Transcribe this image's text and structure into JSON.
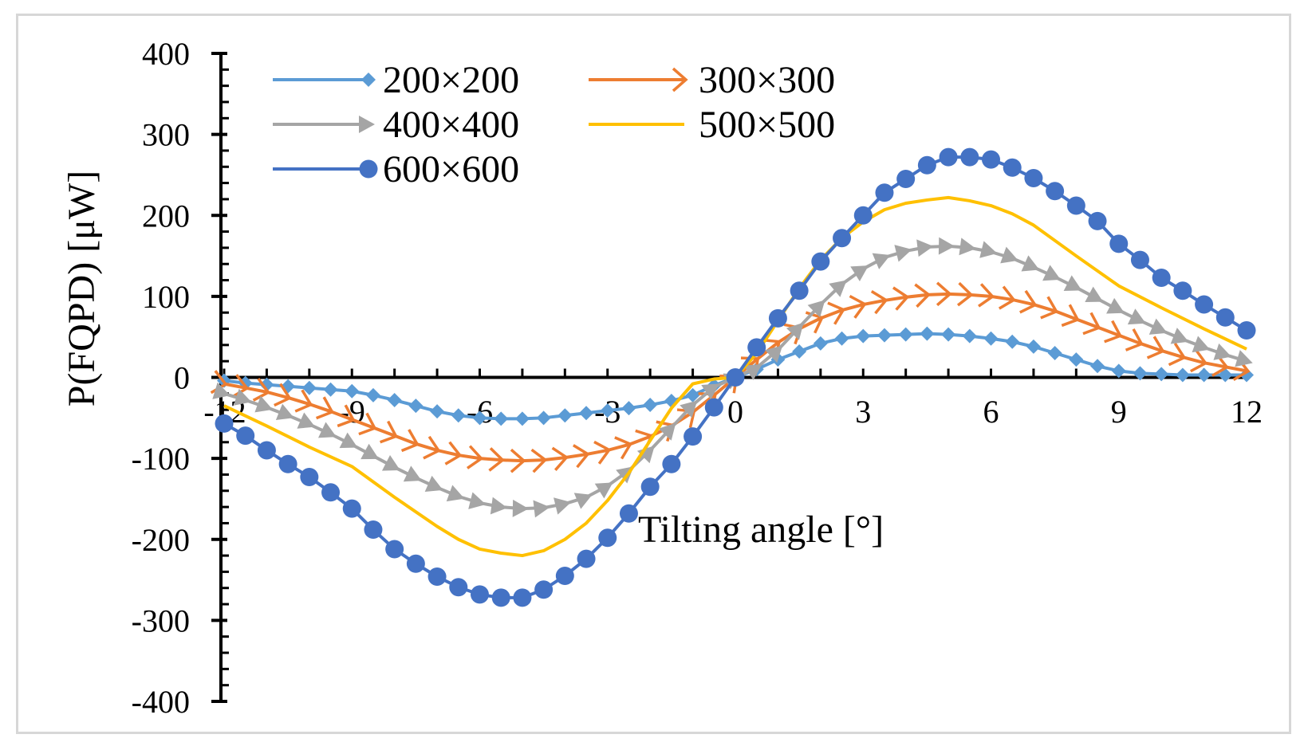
{
  "chart_data": {
    "type": "line",
    "title": "",
    "xlabel": "Tilting angle [°]",
    "ylabel": "P(FQPD) [μW]",
    "xlim": [
      -12,
      12
    ],
    "ylim": [
      -400,
      400
    ],
    "xticks": [
      -12,
      -9,
      -6,
      -3,
      0,
      3,
      6,
      9,
      12
    ],
    "xtick_labels": [
      "-12",
      "-9",
      "-6",
      "-3",
      "0",
      "3",
      "6",
      "9",
      "12"
    ],
    "yticks": [
      400,
      300,
      200,
      100,
      0,
      -100,
      -200,
      -300,
      -400
    ],
    "ytick_labels": [
      "400",
      "300",
      "200",
      "100",
      "0",
      "-100",
      "-200",
      "-300",
      "-400"
    ],
    "legend_position": "top-left",
    "series": [
      {
        "name": "200×200",
        "color": "#5b9bd5",
        "marker": "diamond",
        "x": [
          -12,
          -11.5,
          -11,
          -10.5,
          -10,
          -9.5,
          -9,
          -8.5,
          -8,
          -7.5,
          -7,
          -6.5,
          -6,
          -5.5,
          -5,
          -4.5,
          -4,
          -3.5,
          -3,
          -2.5,
          -2,
          -1.5,
          -1,
          -0.5,
          0,
          0.5,
          1,
          1.5,
          2,
          2.5,
          3,
          3.5,
          4,
          4.5,
          5,
          5.5,
          6,
          6.5,
          7,
          7.5,
          8,
          8.5,
          9,
          9.5,
          10,
          10.5,
          11,
          11.5,
          12
        ],
        "y": [
          -4,
          -7,
          -9,
          -11,
          -13,
          -15,
          -17,
          -22,
          -28,
          -35,
          -42,
          -47,
          -50,
          -51,
          -51,
          -50,
          -47,
          -44,
          -41,
          -38,
          -34,
          -29,
          -22,
          -10,
          0,
          10,
          22,
          32,
          42,
          48,
          51,
          52,
          53,
          54,
          53,
          51,
          48,
          44,
          38,
          30,
          22,
          14,
          8,
          5,
          4,
          3,
          3,
          3,
          3
        ]
      },
      {
        "name": "300×300",
        "color": "#ed7d31",
        "marker": "arrow",
        "x": [
          -12,
          -11.5,
          -11,
          -10.5,
          -10,
          -9.5,
          -9,
          -8.5,
          -8,
          -7.5,
          -7,
          -6.5,
          -6,
          -5.5,
          -5,
          -4.5,
          -4,
          -3.5,
          -3,
          -2.5,
          -2,
          -1.5,
          -1,
          -0.5,
          0,
          0.5,
          1,
          1.5,
          2,
          2.5,
          3,
          3.5,
          4,
          4.5,
          5,
          5.5,
          6,
          6.5,
          7,
          7.5,
          8,
          8.5,
          9,
          9.5,
          10,
          10.5,
          11,
          11.5,
          12
        ],
        "y": [
          -8,
          -13,
          -18,
          -25,
          -33,
          -42,
          -52,
          -62,
          -72,
          -82,
          -90,
          -96,
          -100,
          -102,
          -103,
          -102,
          -99,
          -95,
          -90,
          -83,
          -73,
          -60,
          -43,
          -22,
          0,
          22,
          43,
          60,
          73,
          83,
          90,
          95,
          99,
          102,
          103,
          102,
          100,
          96,
          90,
          82,
          72,
          62,
          52,
          42,
          33,
          25,
          18,
          13,
          8
        ]
      },
      {
        "name": "400×400",
        "color": "#a5a5a5",
        "marker": "arrow",
        "x": [
          -12,
          -11.5,
          -11,
          -10.5,
          -10,
          -9.5,
          -9,
          -8.5,
          -8,
          -7.5,
          -7,
          -6.5,
          -6,
          -5.5,
          -5,
          -4.5,
          -4,
          -3.5,
          -3,
          -2.5,
          -2,
          -1.5,
          -1,
          -0.5,
          0,
          0.5,
          1,
          1.5,
          2,
          2.5,
          3,
          3.5,
          4,
          4.5,
          5,
          5.5,
          6,
          6.5,
          7,
          7.5,
          8,
          8.5,
          9,
          9.5,
          10,
          10.5,
          11,
          11.5,
          12
        ],
        "y": [
          -20,
          -28,
          -37,
          -47,
          -58,
          -70,
          -83,
          -97,
          -111,
          -124,
          -136,
          -147,
          -155,
          -160,
          -162,
          -161,
          -156,
          -148,
          -134,
          -115,
          -90,
          -62,
          -34,
          -12,
          0,
          12,
          34,
          62,
          90,
          115,
          134,
          148,
          156,
          161,
          162,
          160,
          155,
          147,
          136,
          124,
          111,
          97,
          83,
          70,
          58,
          47,
          37,
          28,
          20
        ]
      },
      {
        "name": "500×500",
        "color": "#ffc000",
        "marker": "none",
        "x": [
          -12,
          -11,
          -10,
          -9,
          -8,
          -7,
          -6.5,
          -6,
          -5.5,
          -5,
          -4.5,
          -4,
          -3.5,
          -3,
          -2.5,
          -2,
          -1.5,
          -1,
          -0.5,
          0,
          0.5,
          1,
          1.5,
          2,
          2.5,
          3,
          3.5,
          4,
          4.5,
          5,
          5.5,
          6,
          6.5,
          7,
          8,
          9,
          10,
          11,
          12
        ],
        "y": [
          -35,
          -60,
          -86,
          -110,
          -148,
          -184,
          -200,
          -212,
          -217,
          -220,
          -214,
          -200,
          -180,
          -152,
          -118,
          -78,
          -38,
          -8,
          -2,
          0,
          30,
          70,
          110,
          145,
          172,
          192,
          207,
          215,
          219,
          222,
          218,
          212,
          202,
          188,
          150,
          113,
          86,
          60,
          35
        ]
      },
      {
        "name": "600×600",
        "color": "#4472c4",
        "marker": "circle",
        "x": [
          -12,
          -11.5,
          -11,
          -10.5,
          -10,
          -9.5,
          -9,
          -8.5,
          -8,
          -7.5,
          -7,
          -6.5,
          -6,
          -5.5,
          -5,
          -4.5,
          -4,
          -3.5,
          -3,
          -2.5,
          -2,
          -1.5,
          -1,
          -0.5,
          0,
          0.5,
          1,
          1.5,
          2,
          2.5,
          3,
          3.5,
          4,
          4.5,
          5,
          5.5,
          6,
          6.5,
          7,
          7.5,
          8,
          8.5,
          9,
          9.5,
          10,
          10.5,
          11,
          11.5,
          12
        ],
        "y": [
          -57,
          -72,
          -90,
          -107,
          -123,
          -142,
          -162,
          -188,
          -212,
          -230,
          -246,
          -259,
          -268,
          -272,
          -272,
          -262,
          -245,
          -224,
          -198,
          -168,
          -135,
          -107,
          -73,
          -37,
          0,
          37,
          73,
          107,
          143,
          172,
          200,
          228,
          245,
          262,
          272,
          272,
          269,
          259,
          246,
          230,
          212,
          193,
          165,
          145,
          123,
          107,
          90,
          74,
          58
        ]
      }
    ]
  }
}
